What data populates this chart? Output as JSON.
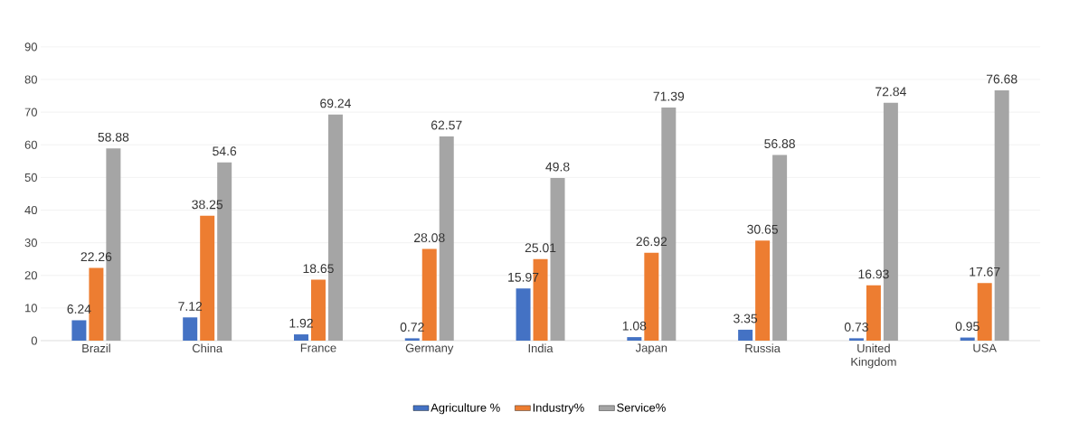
{
  "chart_data": {
    "type": "bar",
    "categories": [
      "Brazil",
      "China",
      "France",
      "Germany",
      "India",
      "Japan",
      "Russia",
      "United Kingdom",
      "USA"
    ],
    "series": [
      {
        "name": "Agriculture %",
        "color": "#4472c4",
        "values": [
          6.24,
          7.12,
          1.92,
          0.72,
          15.97,
          1.08,
          3.35,
          0.73,
          0.95
        ]
      },
      {
        "name": "Industry%",
        "color": "#ed7d31",
        "values": [
          22.26,
          38.25,
          18.65,
          28.08,
          25.01,
          26.92,
          30.65,
          16.93,
          17.67
        ]
      },
      {
        "name": "Service%",
        "color": "#a5a5a5",
        "values": [
          58.88,
          54.6,
          69.24,
          62.57,
          49.8,
          71.39,
          56.88,
          72.84,
          76.68
        ]
      }
    ],
    "ylim": [
      0,
      90
    ],
    "yticks": [
      0,
      10,
      20,
      30,
      40,
      50,
      60,
      70,
      80,
      90
    ],
    "grid": "y",
    "legend": "bottom",
    "data_labels": true
  }
}
